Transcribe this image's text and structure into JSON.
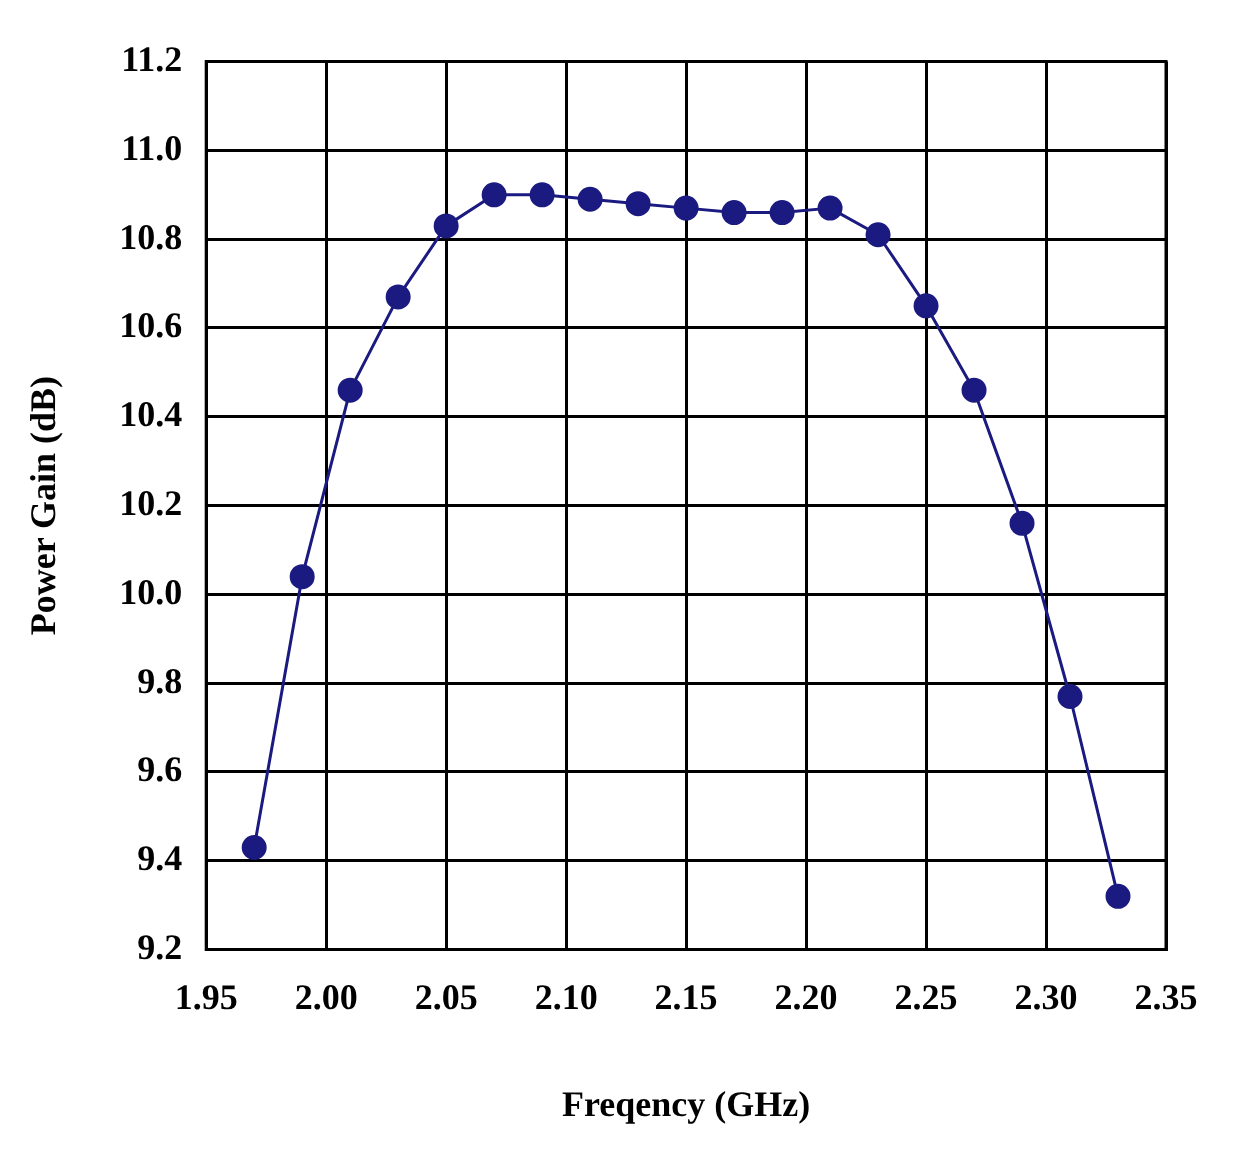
{
  "chart_data": {
    "type": "line",
    "xlabel": "Freqency (GHz)",
    "ylabel": "Power Gain (dB)",
    "x": [
      1.97,
      1.99,
      2.01,
      2.03,
      2.05,
      2.07,
      2.09,
      2.11,
      2.13,
      2.15,
      2.17,
      2.19,
      2.21,
      2.23,
      2.25,
      2.27,
      2.29,
      2.31,
      2.33
    ],
    "series": [
      {
        "color": "#1a1a80",
        "values": [
          9.43,
          10.04,
          10.46,
          10.67,
          10.83,
          10.9,
          10.9,
          10.89,
          10.88,
          10.87,
          10.86,
          10.86,
          10.87,
          10.81,
          10.65,
          10.46,
          10.16,
          9.77,
          9.32
        ]
      }
    ],
    "xlim": [
      1.95,
      2.35
    ],
    "xticks": [
      1.95,
      {
        "value": 2.0,
        "label": "2.00"
      },
      2.05,
      {
        "value": 2.1,
        "label": "2.10"
      },
      2.15,
      {
        "value": 2.2,
        "label": "2.20"
      },
      2.25,
      {
        "value": 2.3,
        "label": "2.30"
      },
      2.35
    ],
    "ylim": [
      9.2,
      11.2
    ],
    "yticks": [
      9.2,
      9.4,
      9.6,
      9.8,
      {
        "value": 10.0,
        "label": "10.0"
      },
      10.2,
      10.4,
      10.6,
      10.8,
      {
        "value": 11.0,
        "label": "11.0"
      },
      11.2
    ],
    "grid": true,
    "legend": false,
    "marker": "circle",
    "line_style": "solid"
  }
}
